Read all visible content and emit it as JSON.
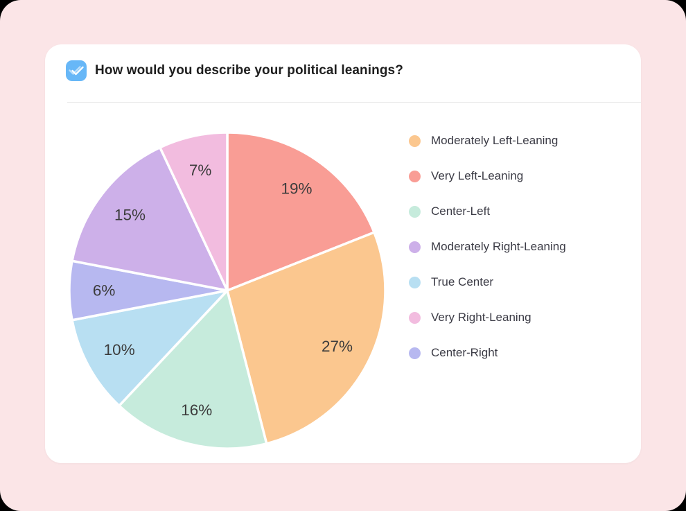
{
  "page": {
    "background": "#FBE5E7",
    "card_background": "#FFFFFF"
  },
  "header": {
    "icon": "double-check-icon",
    "icon_bg": "#67B7F7",
    "title": "How would you describe your political leanings?"
  },
  "chart_data": {
    "type": "pie",
    "title": "How would you describe your political leanings?",
    "start_angle_deg": 0,
    "direction": "clockwise",
    "labels_inside": true,
    "label_radius_ratio": 0.78,
    "legend_position": "right",
    "slices": [
      {
        "label": "Very Left-Leaning",
        "value": 19,
        "display": "19%",
        "color": "#F99D95"
      },
      {
        "label": "Moderately Left-Leaning",
        "value": 27,
        "display": "27%",
        "color": "#FBC78F"
      },
      {
        "label": "Center-Left",
        "value": 16,
        "display": "16%",
        "color": "#C6EBDC"
      },
      {
        "label": "True Center",
        "value": 10,
        "display": "10%",
        "color": "#B8DFF2"
      },
      {
        "label": "Center-Right",
        "value": 6,
        "display": "6%",
        "color": "#B7B8F0"
      },
      {
        "label": "Moderately Right-Leaning",
        "value": 15,
        "display": "15%",
        "color": "#CDB0E9"
      },
      {
        "label": "Very Right-Leaning",
        "value": 7,
        "display": "7%",
        "color": "#F2BCDF"
      }
    ],
    "legend": [
      "Moderately Left-Leaning",
      "Very Left-Leaning",
      "Center-Left",
      "Moderately Right-Leaning",
      "True Center",
      "Very Right-Leaning",
      "Center-Right"
    ]
  }
}
